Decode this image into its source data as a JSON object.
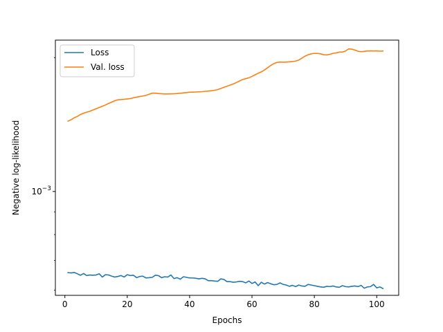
{
  "chart_data": {
    "type": "line",
    "xlabel": "Epochs",
    "ylabel": "Negative log-likelihood",
    "xscale": "linear",
    "yscale": "log",
    "xlim": [
      -3.05,
      107.05
    ],
    "ylim": [
      0.000584,
      0.00219
    ],
    "grid": false,
    "legend_position": "top-left",
    "x_ticks": [
      {
        "value": 0,
        "label": "0"
      },
      {
        "value": 20,
        "label": "20"
      },
      {
        "value": 40,
        "label": "40"
      },
      {
        "value": 60,
        "label": "60"
      },
      {
        "value": 80,
        "label": "80"
      },
      {
        "value": 100,
        "label": "100"
      }
    ],
    "y_ticks": [
      {
        "value": 0.001,
        "label_base": "10",
        "label_exp": "−3"
      }
    ],
    "series": [
      {
        "name": "Loss",
        "color": "#1f77b4",
        "values": [
          [
            1,
            0.000657
          ],
          [
            2,
            0.000656
          ],
          [
            3,
            0.0006575
          ],
          [
            4,
            0.000653
          ],
          [
            5,
            0.000648
          ],
          [
            6,
            0.000654
          ],
          [
            7,
            0.000647
          ],
          [
            8,
            0.000649
          ],
          [
            9,
            0.000648
          ],
          [
            10,
            0.000649
          ],
          [
            11,
            0.000653
          ],
          [
            12,
            0.000642
          ],
          [
            13,
            0.00065
          ],
          [
            14,
            0.000649
          ],
          [
            15,
            0.000645
          ],
          [
            16,
            0.000642
          ],
          [
            17,
            0.000644
          ],
          [
            18,
            0.000647
          ],
          [
            19,
            0.000642
          ],
          [
            20,
            0.00065
          ],
          [
            21,
            0.000647
          ],
          [
            22,
            0.000648
          ],
          [
            23,
            0.00064
          ],
          [
            24,
            0.000644
          ],
          [
            25,
            0.000645
          ],
          [
            26,
            0.000639
          ],
          [
            27,
            0.00064
          ],
          [
            28,
            0.000641
          ],
          [
            29,
            0.000648
          ],
          [
            30,
            0.000647
          ],
          [
            31,
            0.00064
          ],
          [
            32,
            0.000643
          ],
          [
            33,
            0.000642
          ],
          [
            34,
            0.000649
          ],
          [
            35,
            0.000637
          ],
          [
            36,
            0.00064
          ],
          [
            37,
            0.000635
          ],
          [
            38,
            0.000643
          ],
          [
            39,
            0.000641
          ],
          [
            40,
            0.000639
          ],
          [
            41,
            0.000639
          ],
          [
            42,
            0.000638
          ],
          [
            43,
            0.000636
          ],
          [
            44,
            0.000638
          ],
          [
            45,
            0.000636
          ],
          [
            46,
            0.00063
          ],
          [
            47,
            0.00063
          ],
          [
            48,
            0.000629
          ],
          [
            49,
            0.000628
          ],
          [
            50,
            0.000636
          ],
          [
            51,
            0.000634
          ],
          [
            52,
            0.000627
          ],
          [
            53,
            0.000627
          ],
          [
            54,
            0.000625
          ],
          [
            55,
            0.000626
          ],
          [
            56,
            0.000628
          ],
          [
            57,
            0.000627
          ],
          [
            58,
            0.000623
          ],
          [
            59,
            0.000629
          ],
          [
            60,
            0.000621
          ],
          [
            61,
            0.000626
          ],
          [
            62,
            0.000614
          ],
          [
            63,
            0.000625
          ],
          [
            64,
            0.000619
          ],
          [
            65,
            0.000624
          ],
          [
            66,
            0.00062
          ],
          [
            67,
            0.000617
          ],
          [
            68,
            0.000618
          ],
          [
            69,
            0.000623
          ],
          [
            70,
            0.000618
          ],
          [
            71,
            0.000616
          ],
          [
            72,
            0.000612
          ],
          [
            73,
            0.000615
          ],
          [
            74,
            0.000611
          ],
          [
            75,
            0.000616
          ],
          [
            76,
            0.000613
          ],
          [
            77,
            0.000612
          ],
          [
            78,
            0.000618
          ],
          [
            79,
            0.000616
          ],
          [
            80,
            0.000614
          ],
          [
            81,
            0.000612
          ],
          [
            82,
            0.00061
          ],
          [
            83,
            0.000609
          ],
          [
            84,
            0.000612
          ],
          [
            85,
            0.000611
          ],
          [
            86,
            0.000613
          ],
          [
            87,
            0.00061
          ],
          [
            88,
            0.000609
          ],
          [
            89,
            0.000614
          ],
          [
            90,
            0.000611
          ],
          [
            91,
            0.00061
          ],
          [
            92,
            0.000612
          ],
          [
            93,
            0.000613
          ],
          [
            94,
            0.000611
          ],
          [
            95,
            0.000615
          ],
          [
            96,
            0.000606
          ],
          [
            97,
            0.00061
          ],
          [
            98,
            0.000611
          ],
          [
            99,
            0.000618
          ],
          [
            100,
            0.000607
          ],
          [
            101,
            0.00061
          ],
          [
            102,
            0.000605
          ]
        ]
      },
      {
        "name": "Val. loss",
        "color": "#ff7f0e",
        "values": [
          [
            1,
            0.00144
          ],
          [
            2,
            0.00145
          ],
          [
            3,
            0.001465
          ],
          [
            4,
            0.001475
          ],
          [
            5,
            0.00149
          ],
          [
            6,
            0.0015
          ],
          [
            7,
            0.001508
          ],
          [
            8,
            0.001515
          ],
          [
            9,
            0.001525
          ],
          [
            10,
            0.001535
          ],
          [
            11,
            0.001545
          ],
          [
            12,
            0.001555
          ],
          [
            13,
            0.001565
          ],
          [
            14,
            0.001578
          ],
          [
            15,
            0.001588
          ],
          [
            16,
            0.0016
          ],
          [
            17,
            0.001608
          ],
          [
            18,
            0.00161
          ],
          [
            19,
            0.001612
          ],
          [
            20,
            0.001615
          ],
          [
            21,
            0.001618
          ],
          [
            22,
            0.001625
          ],
          [
            23,
            0.00163
          ],
          [
            24,
            0.001635
          ],
          [
            25,
            0.00164
          ],
          [
            26,
            0.001645
          ],
          [
            27,
            0.001655
          ],
          [
            28,
            0.001664
          ],
          [
            29,
            0.001664
          ],
          [
            30,
            0.001661
          ],
          [
            31,
            0.001659
          ],
          [
            32,
            0.001657
          ],
          [
            33,
            0.001657
          ],
          [
            34,
            0.001658
          ],
          [
            35,
            0.001659
          ],
          [
            36,
            0.001661
          ],
          [
            37,
            0.001663
          ],
          [
            38,
            0.001666
          ],
          [
            39,
            0.001669
          ],
          [
            40,
            0.001672
          ],
          [
            41,
            0.001673
          ],
          [
            42,
            0.001674
          ],
          [
            43,
            0.001675
          ],
          [
            44,
            0.001677
          ],
          [
            45,
            0.00168
          ],
          [
            46,
            0.001682
          ],
          [
            47,
            0.001685
          ],
          [
            48,
            0.001689
          ],
          [
            49,
            0.001695
          ],
          [
            50,
            0.001705
          ],
          [
            51,
            0.001715
          ],
          [
            52,
            0.001725
          ],
          [
            53,
            0.001735
          ],
          [
            54,
            0.001745
          ],
          [
            55,
            0.001758
          ],
          [
            56,
            0.001772
          ],
          [
            57,
            0.001786
          ],
          [
            58,
            0.001794
          ],
          [
            59,
            0.001802
          ],
          [
            60,
            0.001815
          ],
          [
            61,
            0.00183
          ],
          [
            62,
            0.001845
          ],
          [
            63,
            0.001858
          ],
          [
            64,
            0.001876
          ],
          [
            65,
            0.001898
          ],
          [
            66,
            0.00192
          ],
          [
            67,
            0.001939
          ],
          [
            68,
            0.001951
          ],
          [
            69,
            0.001955
          ],
          [
            70,
            0.001953
          ],
          [
            71,
            0.001955
          ],
          [
            72,
            0.001957
          ],
          [
            73,
            0.00196
          ],
          [
            74,
            0.001965
          ],
          [
            75,
            0.001975
          ],
          [
            76,
            0.001995
          ],
          [
            77,
            0.002015
          ],
          [
            78,
            0.00203
          ],
          [
            79,
            0.00204
          ],
          [
            80,
            0.002045
          ],
          [
            81,
            0.002044
          ],
          [
            82,
            0.00204
          ],
          [
            83,
            0.00203
          ],
          [
            84,
            0.002028
          ],
          [
            85,
            0.002035
          ],
          [
            86,
            0.002045
          ],
          [
            87,
            0.00205
          ],
          [
            88,
            0.002058
          ],
          [
            89,
            0.002059
          ],
          [
            90,
            0.00207
          ],
          [
            91,
            0.002093
          ],
          [
            92,
            0.00209
          ],
          [
            93,
            0.00208
          ],
          [
            94,
            0.002067
          ],
          [
            95,
            0.002063
          ],
          [
            96,
            0.002066
          ],
          [
            97,
            0.00207
          ],
          [
            98,
            0.002071
          ],
          [
            99,
            0.00207
          ],
          [
            100,
            0.002071
          ],
          [
            101,
            0.002068
          ],
          [
            102,
            0.00207
          ]
        ]
      }
    ]
  }
}
